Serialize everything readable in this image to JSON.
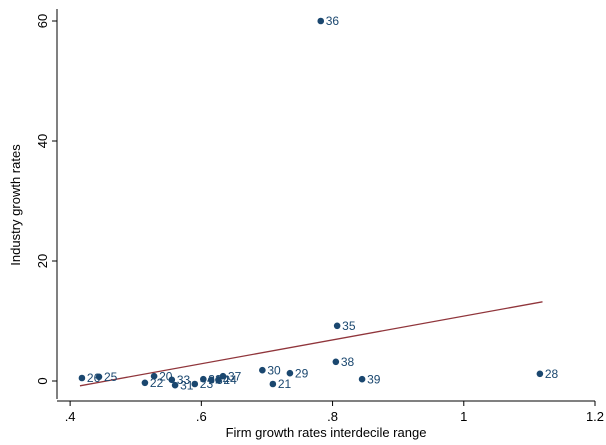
{
  "chart_data": {
    "type": "scatter",
    "x_label": "Firm growth rates interdecile range",
    "y_label": "Industry growth rates",
    "color": "#1a476f",
    "fit_color": "#90353b",
    "xlim": [
      0.38,
      1.2
    ],
    "ylim": [
      -3,
      62
    ],
    "xticks": [
      {
        "value": 0.4,
        "label": ".4"
      },
      {
        "value": 0.6,
        "label": ".6"
      },
      {
        "value": 0.8,
        "label": ".8"
      },
      1,
      1.2
    ],
    "yticks": [
      0,
      20,
      40,
      60
    ],
    "series": [
      {
        "labels": [
          "36",
          "35",
          "38",
          "39",
          "28",
          "30",
          "29",
          "21",
          "37",
          "24",
          "34",
          "32",
          "23",
          "31",
          "33",
          "20",
          "22",
          "25",
          "26"
        ],
        "x": [
          0.782,
          0.807,
          0.805,
          0.845,
          1.116,
          0.693,
          0.735,
          0.709,
          0.633,
          0.626,
          0.615,
          0.603,
          0.59,
          0.56,
          0.555,
          0.528,
          0.514,
          0.444,
          0.418
        ],
        "values": [
          60,
          9.2,
          3.2,
          0.3,
          1.2,
          1.8,
          1.3,
          -0.5,
          0.8,
          0.2,
          0.2,
          0.3,
          -0.5,
          -0.7,
          0.2,
          0.8,
          -0.3,
          0.7,
          0.5
        ]
      }
    ],
    "fit": {
      "x": [
        0.415,
        1.12
      ],
      "values": [
        -0.8,
        13.2
      ]
    }
  }
}
